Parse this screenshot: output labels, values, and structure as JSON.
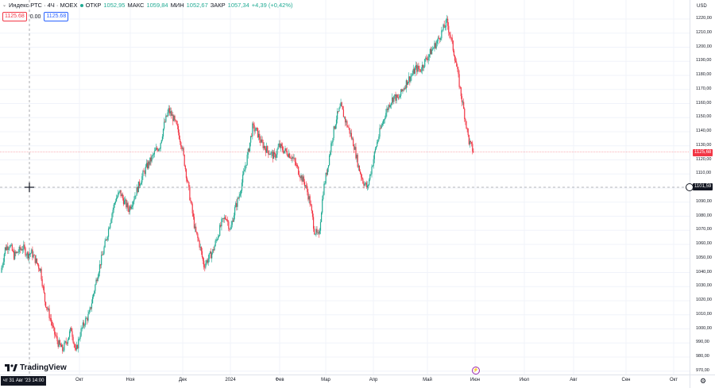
{
  "legend": {
    "symbol_title": "Индекс РТС · 4Ч · MOEX",
    "open_label": "ОТКР",
    "open": "1052,95",
    "high_label": "МАКС",
    "high": "1059,84",
    "low_label": "МИН",
    "low": "1052,67",
    "close_label": "ЗАКР",
    "close": "1057,34",
    "change": "+4,39 (+0,42%)",
    "sell": "1125.68",
    "spread": "0.00",
    "buy": "1125.68"
  },
  "currency": "USD",
  "last_price_badge": "1125,68",
  "crosshair_price_badge": "1101,59",
  "crosshair_time_label": "чт 31 Авг '23   14:00",
  "brand": "TradingView",
  "price_ticks": [
    "1220,00",
    "1210,00",
    "1200,00",
    "1190,00",
    "1180,00",
    "1170,00",
    "1160,00",
    "1150,00",
    "1140,00",
    "1130,00",
    "1120,00",
    "1110,00",
    "1100,00",
    "1090,00",
    "1080,00",
    "1070,00",
    "1060,00",
    "1050,00",
    "1040,00",
    "1030,00",
    "1020,00",
    "1010,00",
    "1000,00",
    "990,00",
    "980,00",
    "970,00"
  ],
  "time_ticks": [
    "Окт",
    "Ноя",
    "Дек",
    "2024",
    "Фев",
    "Мар",
    "Апр",
    "Май",
    "Июн",
    "Июл",
    "Авг",
    "Сен",
    "Окт"
  ],
  "colors": {
    "up": "#22ab94",
    "down": "#f23645",
    "grid": "#f0f3fa",
    "text": "#131722"
  },
  "chart_data": {
    "type": "candlestick",
    "ylim": [
      967,
      1226
    ],
    "x_labels": [
      "Окт",
      "Ноя",
      "Дек",
      "2024",
      "Фев",
      "Мар",
      "Апр",
      "Май",
      "Июн",
      "Июл",
      "Авг",
      "Сен",
      "Окт"
    ],
    "close_path": [
      1040,
      1057,
      1060,
      1052,
      1055,
      1058,
      1053,
      1054,
      1048,
      1042,
      1020,
      1010,
      998,
      990,
      985,
      992,
      1000,
      983,
      997,
      1005,
      1010,
      1025,
      1040,
      1052,
      1065,
      1080,
      1092,
      1097,
      1090,
      1085,
      1092,
      1100,
      1108,
      1115,
      1120,
      1126,
      1130,
      1145,
      1155,
      1150,
      1142,
      1130,
      1110,
      1090,
      1070,
      1060,
      1045,
      1050,
      1055,
      1065,
      1075,
      1080,
      1070,
      1085,
      1095,
      1110,
      1125,
      1143,
      1140,
      1132,
      1128,
      1125,
      1122,
      1130,
      1127,
      1125,
      1122,
      1115,
      1108,
      1102,
      1090,
      1070,
      1065,
      1098,
      1115,
      1135,
      1150,
      1158,
      1148,
      1140,
      1130,
      1115,
      1105,
      1100,
      1115,
      1130,
      1142,
      1152,
      1160,
      1165,
      1163,
      1170,
      1176,
      1180,
      1185,
      1184,
      1190,
      1195,
      1200,
      1205,
      1212,
      1218,
      1205,
      1190,
      1170,
      1152,
      1133,
      1126
    ]
  }
}
